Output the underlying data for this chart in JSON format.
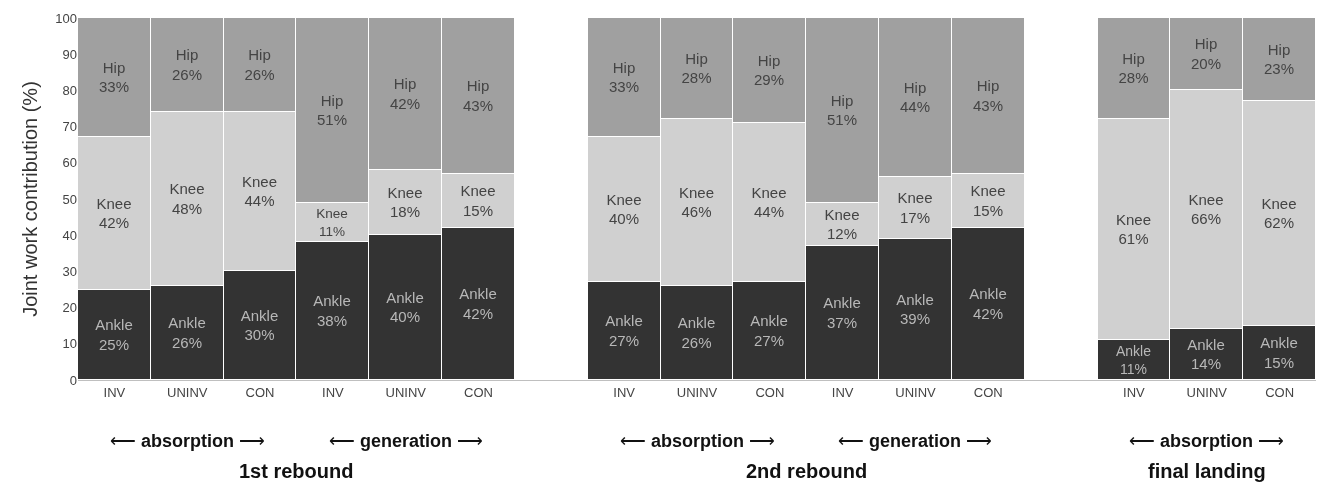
{
  "chart_data": {
    "type": "bar",
    "stacked": true,
    "ylabel": "Joint work contribution (%)",
    "categories": [
      "INV",
      "UNINV",
      "CON",
      "INV",
      "UNINV",
      "CON",
      null,
      "INV",
      "UNINV",
      "CON",
      "INV",
      "UNINV",
      "CON",
      null,
      "INV",
      "UNINV",
      "CON"
    ],
    "series": [
      {
        "name": "Ankle",
        "color": "#333333",
        "values": [
          25,
          26,
          30,
          38,
          40,
          42,
          null,
          27,
          26,
          27,
          37,
          39,
          42,
          null,
          11,
          14,
          15
        ],
        "value_labels": [
          "25%",
          "26%",
          "30%",
          "38%",
          "40%",
          "42%",
          null,
          "27%",
          "26%",
          "27%",
          "37%",
          "39%",
          "42%",
          null,
          "11%",
          "14%",
          "15%"
        ]
      },
      {
        "name": "Knee",
        "color": "#d0d0d0",
        "values": [
          42,
          48,
          44,
          11,
          18,
          15,
          null,
          40,
          46,
          44,
          12,
          17,
          15,
          null,
          61,
          66,
          62
        ],
        "value_labels": [
          "42%",
          "48%",
          "44%",
          "11%",
          "18%",
          "15%",
          null,
          "40%",
          "46%",
          "44%",
          "12%",
          "17%",
          "15%",
          null,
          "61%",
          "66%",
          "62%"
        ]
      },
      {
        "name": "Hip",
        "color": "#a0a0a0",
        "values": [
          33,
          26,
          26,
          51,
          42,
          43,
          null,
          33,
          28,
          29,
          51,
          44,
          43,
          null,
          28,
          20,
          23
        ],
        "value_labels": [
          "33%",
          "26%",
          "26%",
          "51%",
          "42%",
          "43%",
          null,
          "33%",
          "28%",
          "29%",
          "51%",
          "44%",
          "43%",
          null,
          "28%",
          "20%",
          "23%"
        ]
      }
    ],
    "ylim": [
      0,
      100
    ],
    "yticks": [
      0,
      10,
      20,
      30,
      40,
      50,
      60,
      70,
      80,
      90,
      100
    ],
    "grid": false,
    "legend": false,
    "annotations": [
      "⟵ absorption ⟶",
      "⟵ generation ⟶",
      "⟵ absorption ⟶",
      "⟵ generation ⟶",
      "⟵ absorption ⟶",
      "1st rebound",
      "2nd rebound",
      "final landing"
    ]
  }
}
